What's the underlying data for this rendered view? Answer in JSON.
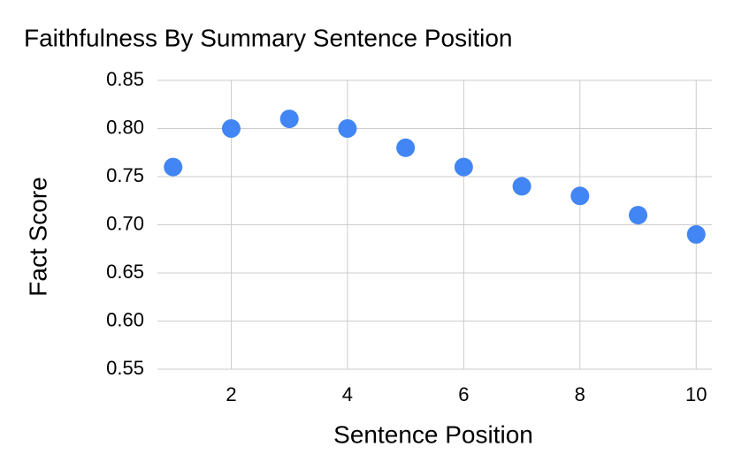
{
  "chart_data": {
    "type": "scatter",
    "title": "Faithfulness By Summary Sentence Position",
    "x_label": "Sentence Position",
    "y_label": "Fact Score",
    "x": [
      1,
      2,
      3,
      4,
      5,
      6,
      7,
      8,
      9,
      10
    ],
    "series": [
      {
        "name": "Fact Score",
        "color": "#4285f4",
        "values": [
          0.76,
          0.8,
          0.81,
          0.8,
          0.78,
          0.76,
          0.74,
          0.73,
          0.71,
          0.69
        ]
      }
    ],
    "xlim": [
      0.73,
      10.27
    ],
    "ylim": [
      0.55,
      0.85
    ],
    "xticks": [
      2,
      4,
      6,
      8,
      10
    ],
    "yticks": [
      0.55,
      {
        "value": 0.6,
        "label": "0.60"
      },
      0.65,
      {
        "value": 0.7,
        "label": "0.70"
      },
      0.75,
      {
        "value": 0.8,
        "label": "0.80"
      },
      0.85
    ],
    "grid": true
  }
}
